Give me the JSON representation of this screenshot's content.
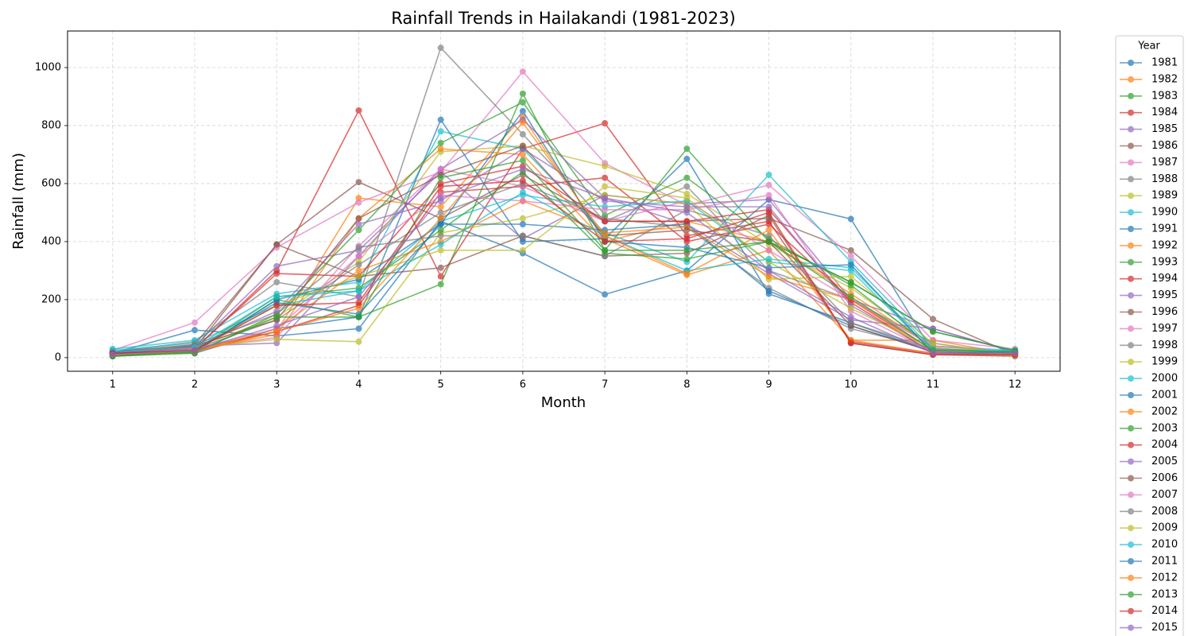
{
  "chart_data": {
    "type": "line",
    "title": "Rainfall Trends in Hailakandi (1981-2023)",
    "x_label": "Month",
    "y_label": "Rainfall (mm)",
    "x": [
      1,
      2,
      3,
      4,
      5,
      6,
      7,
      8,
      9,
      10,
      11,
      12
    ],
    "xlim": [
      0.45,
      12.55
    ],
    "xticks": [
      1,
      2,
      3,
      4,
      5,
      6,
      7,
      8,
      9,
      10,
      11,
      12
    ],
    "ylim": [
      -47,
      1126
    ],
    "yticks": [
      0,
      200,
      400,
      600,
      800,
      1000
    ],
    "grid": true,
    "legend_title": "Year",
    "legend_position": "outside right",
    "series": [
      {
        "name": "1981",
        "color": "#1f77b4",
        "values": [
          15,
          95,
          75,
          100,
          470,
          360,
          218,
          300,
          545,
          478,
          20,
          15
        ]
      },
      {
        "name": "1982",
        "color": "#ff7f0e",
        "values": [
          10,
          20,
          90,
          550,
          520,
          830,
          410,
          285,
          370,
          60,
          60,
          10
        ]
      },
      {
        "name": "1983",
        "color": "#2ca02c",
        "values": [
          5,
          20,
          200,
          140,
          253,
          910,
          370,
          720,
          400,
          260,
          90,
          25
        ]
      },
      {
        "name": "1984",
        "color": "#d62728",
        "values": [
          15,
          30,
          300,
          852,
          280,
          720,
          808,
          420,
          470,
          55,
          15,
          10
        ]
      },
      {
        "name": "1985",
        "color": "#9467bd",
        "values": [
          20,
          40,
          315,
          370,
          640,
          410,
          560,
          530,
          545,
          200,
          100,
          20
        ]
      },
      {
        "name": "1986",
        "color": "#8c564b",
        "values": [
          10,
          30,
          390,
          605,
          480,
          630,
          470,
          470,
          480,
          370,
          133,
          10
        ]
      },
      {
        "name": "1987",
        "color": "#e377c2",
        "values": [
          25,
          121,
          380,
          535,
          640,
          986,
          670,
          525,
          595,
          350,
          60,
          30
        ]
      },
      {
        "name": "1988",
        "color": "#7f7f7f",
        "values": [
          20,
          55,
          260,
          210,
          1068,
          770,
          470,
          590,
          300,
          200,
          50,
          10
        ]
      },
      {
        "name": "1989",
        "color": "#bcbd22",
        "values": [
          15,
          35,
          140,
          330,
          710,
          730,
          660,
          565,
          390,
          240,
          40,
          15
        ]
      },
      {
        "name": "1990",
        "color": "#17becf",
        "values": [
          30,
          60,
          220,
          260,
          780,
          720,
          430,
          330,
          630,
          330,
          40,
          25
        ]
      },
      {
        "name": "1991",
        "color": "#1f77b4",
        "values": [
          20,
          15,
          100,
          140,
          820,
          400,
          410,
          685,
          220,
          120,
          20,
          15
        ]
      },
      {
        "name": "1992",
        "color": "#ff7f0e",
        "values": [
          10,
          25,
          80,
          480,
          720,
          700,
          400,
          470,
          400,
          220,
          35,
          10
        ]
      },
      {
        "name": "1993",
        "color": "#2ca02c",
        "values": [
          5,
          15,
          150,
          440,
          740,
          880,
          490,
          620,
          410,
          250,
          30,
          20
        ]
      },
      {
        "name": "1994",
        "color": "#d62728",
        "values": [
          15,
          30,
          90,
          180,
          570,
          590,
          620,
          400,
          460,
          200,
          25,
          15
        ]
      },
      {
        "name": "1995",
        "color": "#9467bd",
        "values": [
          10,
          40,
          50,
          350,
          650,
          820,
          550,
          460,
          290,
          130,
          100,
          20
        ]
      },
      {
        "name": "1996",
        "color": "#8c564b",
        "values": [
          20,
          45,
          390,
          280,
          310,
          420,
          350,
          360,
          490,
          50,
          10,
          5
        ]
      },
      {
        "name": "1997",
        "color": "#e377c2",
        "values": [
          15,
          30,
          70,
          385,
          650,
          590,
          470,
          540,
          370,
          200,
          40,
          20
        ]
      },
      {
        "name": "1998",
        "color": "#7f7f7f",
        "values": [
          10,
          30,
          130,
          320,
          500,
          600,
          480,
          450,
          240,
          100,
          30,
          15
        ]
      },
      {
        "name": "1999",
        "color": "#bcbd22",
        "values": [
          10,
          35,
          63,
          55,
          430,
          480,
          560,
          530,
          270,
          280,
          50,
          10
        ]
      },
      {
        "name": "2000",
        "color": "#17becf",
        "values": [
          25,
          50,
          180,
          230,
          470,
          560,
          520,
          540,
          330,
          300,
          20,
          25
        ]
      },
      {
        "name": "2001",
        "color": "#1f77b4",
        "values": [
          20,
          20,
          200,
          270,
          460,
          460,
          440,
          460,
          230,
          110,
          20,
          15
        ]
      },
      {
        "name": "2002",
        "color": "#ff7f0e",
        "values": [
          10,
          20,
          100,
          300,
          400,
          540,
          430,
          450,
          280,
          200,
          15,
          10
        ]
      },
      {
        "name": "2003",
        "color": "#2ca02c",
        "values": [
          5,
          25,
          210,
          240,
          440,
          640,
          360,
          340,
          400,
          260,
          90,
          25
        ]
      },
      {
        "name": "2004",
        "color": "#d62728",
        "values": [
          15,
          30,
          290,
          280,
          600,
          660,
          470,
          470,
          510,
          190,
          15,
          10
        ]
      },
      {
        "name": "2005",
        "color": "#9467bd",
        "values": [
          20,
          35,
          160,
          460,
          540,
          720,
          540,
          520,
          520,
          180,
          20,
          15
        ]
      },
      {
        "name": "2006",
        "color": "#8c564b",
        "values": [
          10,
          40,
          130,
          480,
          630,
          730,
          420,
          440,
          400,
          110,
          20,
          10
        ]
      },
      {
        "name": "2007",
        "color": "#e377c2",
        "values": [
          15,
          30,
          100,
          350,
          560,
          540,
          510,
          510,
          560,
          160,
          20,
          15
        ]
      },
      {
        "name": "2008",
        "color": "#7f7f7f",
        "values": [
          10,
          45,
          150,
          380,
          420,
          420,
          350,
          510,
          420,
          120,
          30,
          10
        ]
      },
      {
        "name": "2009",
        "color": "#bcbd22",
        "values": [
          10,
          25,
          180,
          280,
          370,
          370,
          590,
          550,
          330,
          170,
          30,
          10
        ]
      },
      {
        "name": "2010",
        "color": "#17becf",
        "values": [
          20,
          35,
          210,
          230,
          390,
          570,
          420,
          300,
          340,
          310,
          30,
          20
        ]
      },
      {
        "name": "2011",
        "color": "#1f77b4",
        "values": [
          15,
          25,
          190,
          150,
          460,
          850,
          400,
          380,
          310,
          320,
          15,
          20
        ]
      },
      {
        "name": "2012",
        "color": "#ff7f0e",
        "values": [
          10,
          20,
          90,
          170,
          480,
          810,
          420,
          290,
          440,
          60,
          15,
          10
        ]
      },
      {
        "name": "2013",
        "color": "#2ca02c",
        "values": [
          5,
          20,
          140,
          140,
          620,
          680,
          370,
          370,
          400,
          210,
          25,
          20
        ]
      },
      {
        "name": "2014",
        "color": "#d62728",
        "values": [
          15,
          25,
          180,
          190,
          590,
          610,
          400,
          410,
          500,
          50,
          10,
          10
        ]
      },
      {
        "name": "2015",
        "color": "#9467bd",
        "values": [
          10,
          25,
          110,
          210,
          550,
          650,
          550,
          500,
          300,
          140,
          15,
          15
        ]
      }
    ]
  }
}
